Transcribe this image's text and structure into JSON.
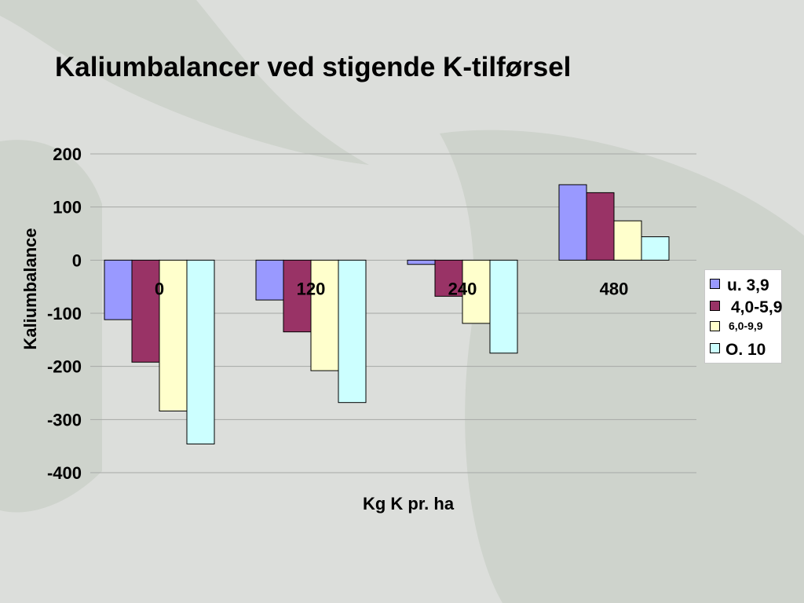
{
  "slide": {
    "title": "Kaliumbalancer ved stigende K-tilførsel"
  },
  "colors": {
    "background": "#dcdedb",
    "decor": "#ced3cc",
    "gridline": "#a6a8a6"
  },
  "chart_data": {
    "type": "bar",
    "xlabel": "Kg K pr. ha",
    "ylabel": "Kaliumbalance",
    "ylim": [
      -400,
      200
    ],
    "yticks": [
      200,
      100,
      0,
      -100,
      -200,
      -300,
      -400
    ],
    "grid": true,
    "legend_position": "right",
    "categories": [
      "0",
      "120",
      "240",
      "480"
    ],
    "series": [
      {
        "name": "u. 3,9",
        "color": "#9999ff",
        "values": [
          -112,
          -75,
          -8,
          142
        ]
      },
      {
        "name": "4,0-5,9",
        "color": "#993366",
        "values": [
          -192,
          -135,
          -68,
          127
        ]
      },
      {
        "name": "6,0-9,9",
        "color": "#ffffcc",
        "values": [
          -284,
          -208,
          -119,
          74
        ]
      },
      {
        "name": "O. 10",
        "color": "#ccffff",
        "values": [
          -346,
          -268,
          -175,
          44
        ]
      }
    ]
  }
}
